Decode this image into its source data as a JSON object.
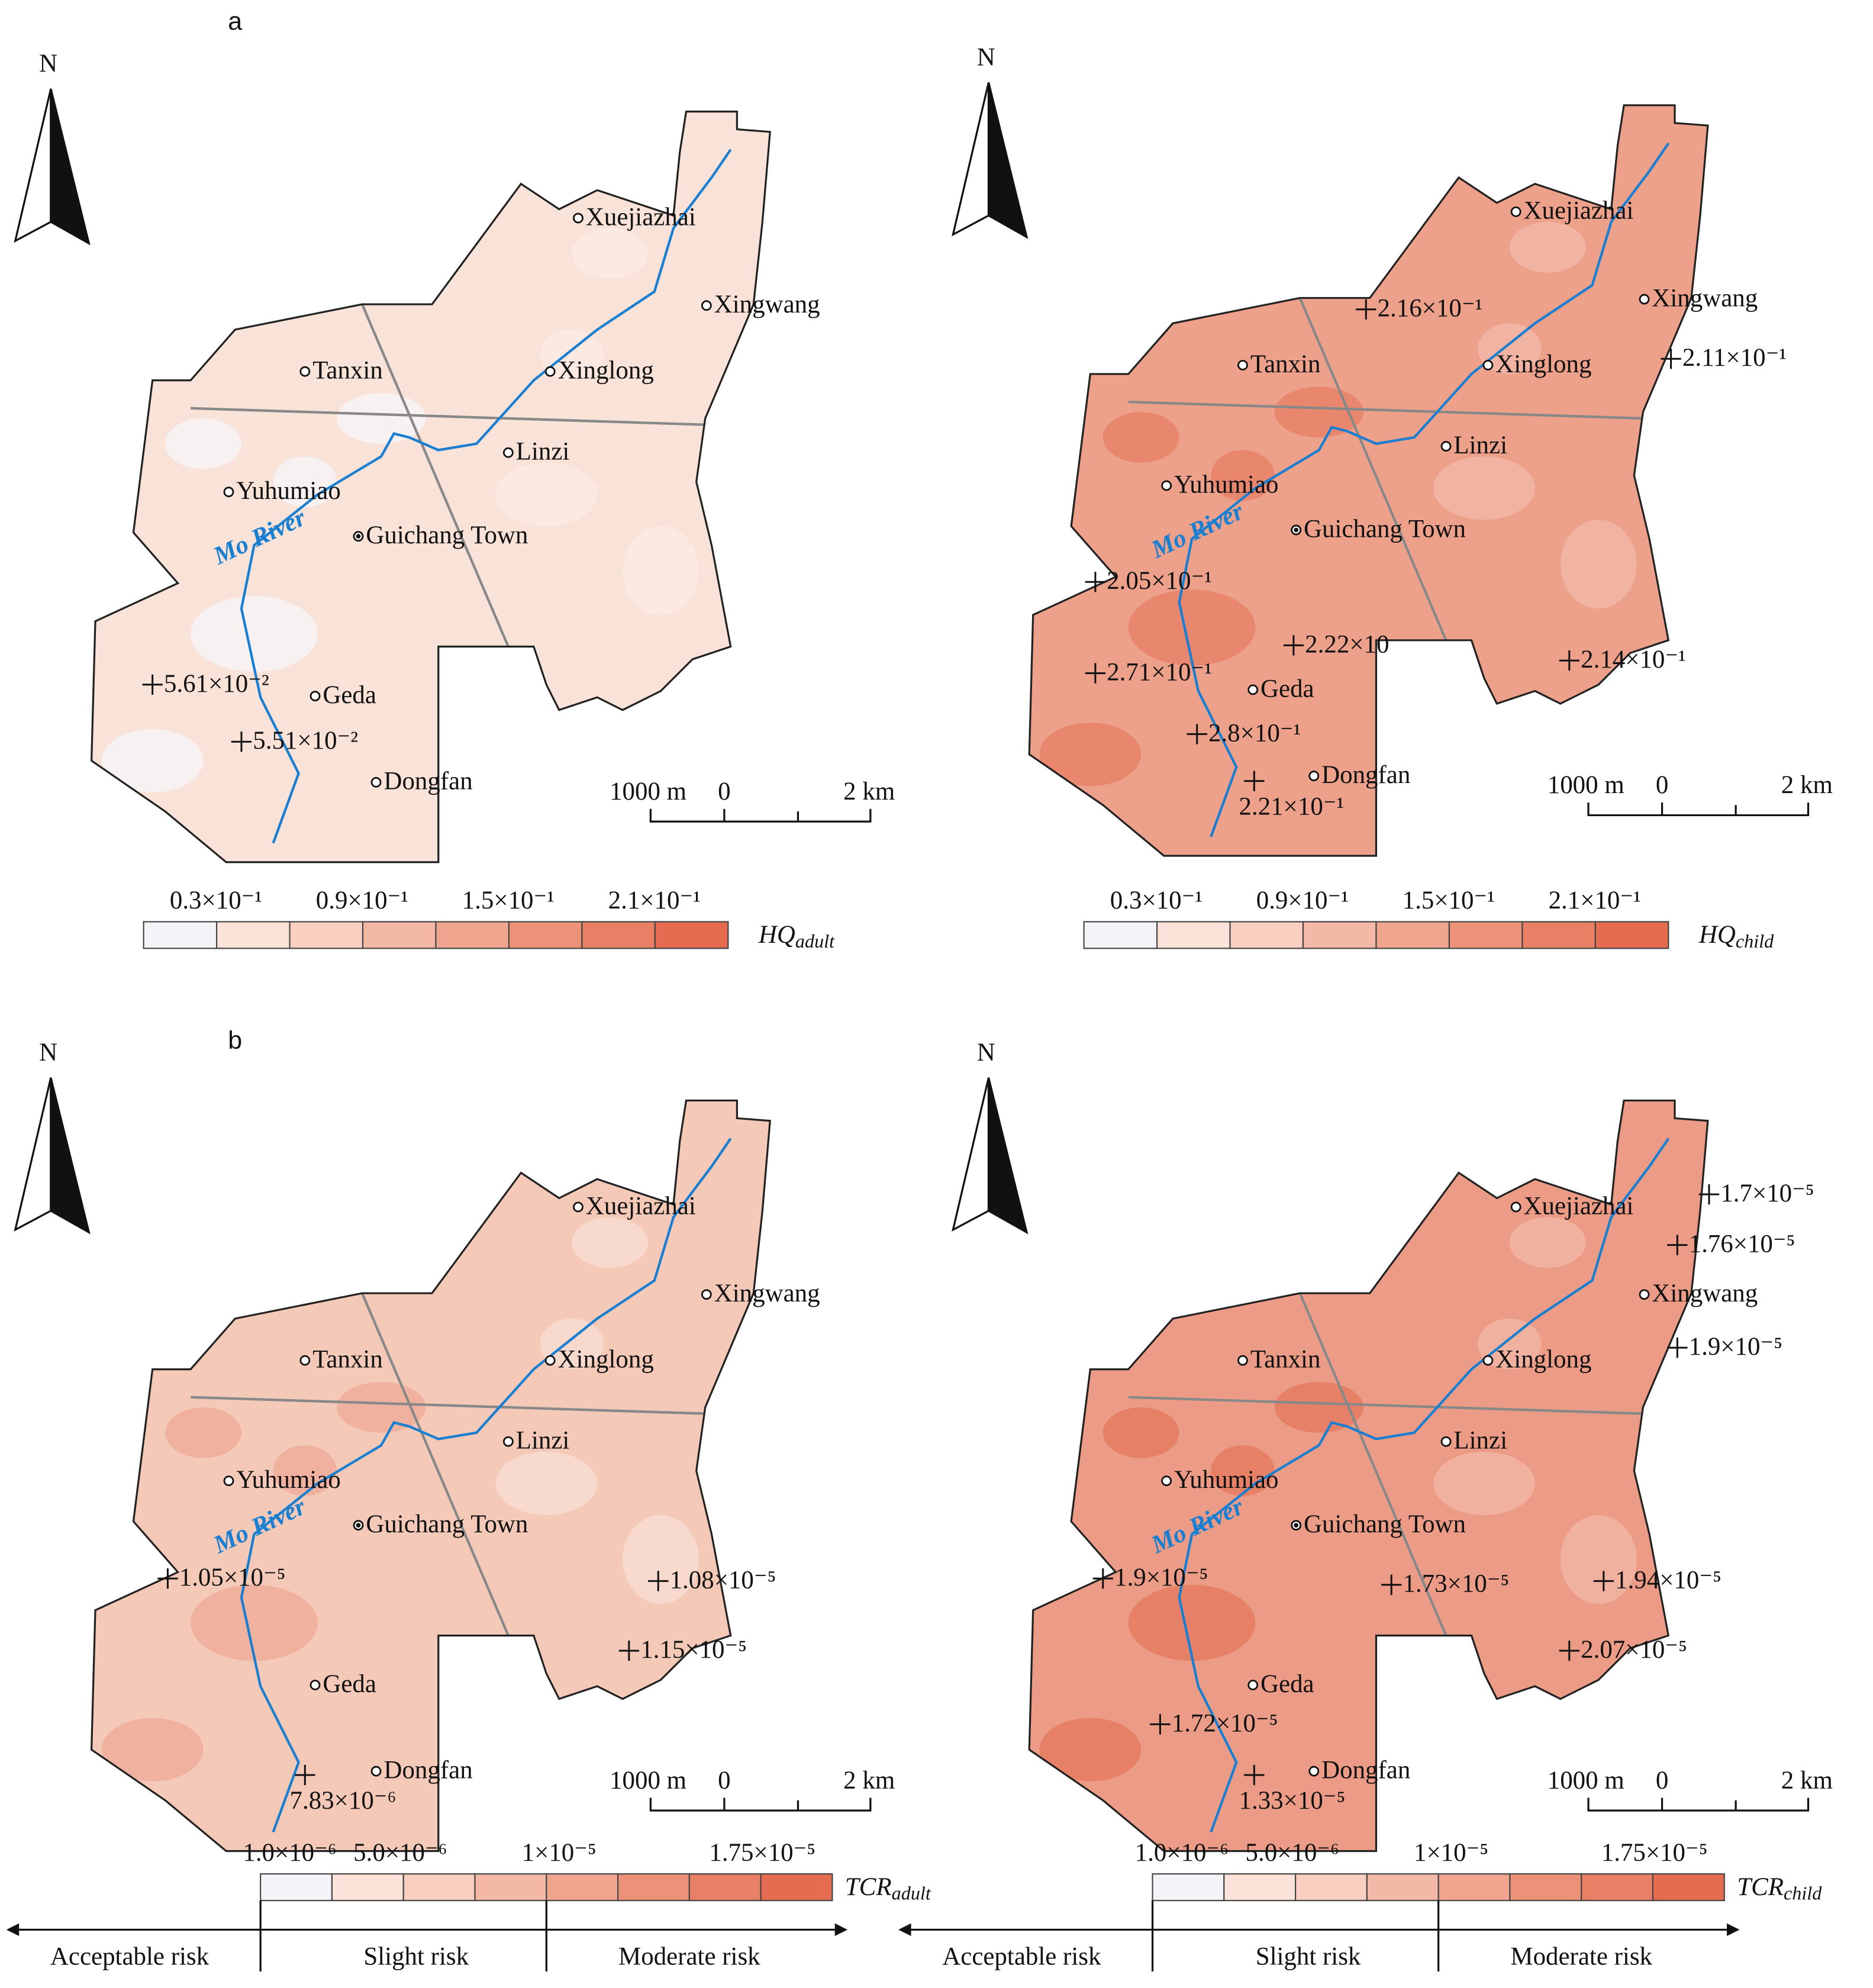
{
  "north": "N",
  "river": "Mo River",
  "scale_bar": [
    "1000 m",
    "0",
    "2 km"
  ],
  "places": [
    "Xuejiazhai",
    "Xingwang",
    "Tanxin",
    "Xinglong",
    "Linzi",
    "Yuhumiao",
    "Guichang Town",
    "Geda",
    "Dongfan"
  ],
  "panels": [
    {
      "label": "a",
      "maps": [
        {
          "legend_title": {
            "main": "HQ",
            "sub": "adult"
          },
          "legend_ticks": [
            "0.3×10⁻¹",
            "0.9×10⁻¹",
            "1.5×10⁻¹",
            "2.1×10⁻¹"
          ],
          "samples": [
            "5.61×10⁻²",
            "5.51×10⁻²"
          ]
        },
        {
          "legend_title": {
            "main": "HQ",
            "sub": "child"
          },
          "legend_ticks": [
            "0.3×10⁻¹",
            "0.9×10⁻¹",
            "1.5×10⁻¹",
            "2.1×10⁻¹"
          ],
          "samples": [
            "2.16×10⁻¹",
            "2.11×10⁻¹",
            "2.05×10⁻¹",
            "2.22×10",
            "2.14×10⁻¹",
            "2.71×10⁻¹",
            "2.8×10⁻¹",
            "2.21×10⁻¹"
          ]
        }
      ]
    },
    {
      "label": "b",
      "risk_classes": [
        "Acceptable risk",
        "Slight risk",
        "Moderate risk"
      ],
      "maps": [
        {
          "legend_title": {
            "main": "TCR",
            "sub": "adult"
          },
          "legend_ticks": [
            "1.0×10⁻⁶",
            "5.0×10⁻⁶",
            "1×10⁻⁵",
            "1.75×10⁻⁵"
          ],
          "samples": [
            "1.05×10⁻⁵",
            "1.08×10⁻⁵",
            "1.15×10⁻⁵",
            "7.83×10⁻⁶"
          ]
        },
        {
          "legend_title": {
            "main": "TCR",
            "sub": "child"
          },
          "legend_ticks": [
            "1.0×10⁻⁶",
            "5.0×10⁻⁶",
            "1×10⁻⁵",
            "1.75×10⁻⁵"
          ],
          "samples": [
            "1.7×10⁻⁵",
            "1.76×10⁻⁵",
            "1.9×10⁻⁵",
            "1.9×10⁻⁵",
            "1.73×10⁻⁵",
            "1.94×10⁻⁵",
            "2.07×10⁻⁵",
            "1.72×10⁻⁵",
            "1.33×10⁻⁵"
          ]
        }
      ]
    }
  ]
}
